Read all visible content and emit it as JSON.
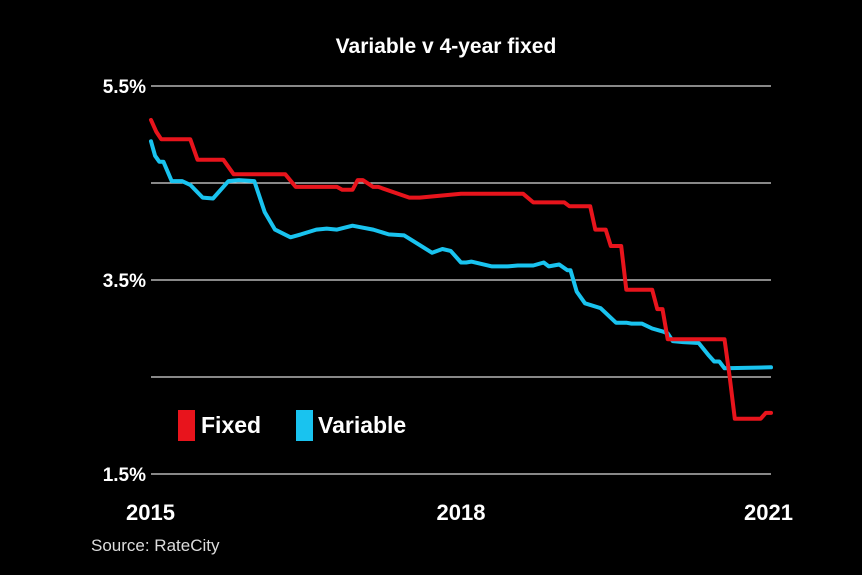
{
  "chart_data": {
    "type": "line",
    "title": "Variable v 4-year fixed",
    "source": "Source: RateCity",
    "yticks": [
      {
        "value": 5.5,
        "label": "5.5%"
      },
      {
        "value": 3.5,
        "label": "3.5%"
      },
      {
        "value": 1.5,
        "label": "1.5%"
      }
    ],
    "ygrid": [
      5.5,
      4.5,
      3.5,
      2.5
    ],
    "ylim": [
      1.5,
      5.5
    ],
    "xticks": [
      {
        "value": 2015,
        "label": "2015"
      },
      {
        "value": 2018,
        "label": "2018"
      },
      {
        "value": 2021,
        "label": "2021"
      }
    ],
    "xlim": [
      2015,
      2021
    ],
    "legend": {
      "placement": "lower-left"
    },
    "series": [
      {
        "name": "Fixed",
        "color": "#e8141c",
        "x": [
          2015.0,
          2015.05,
          2015.1,
          2015.38,
          2015.45,
          2015.7,
          2015.8,
          2016.3,
          2016.4,
          2016.8,
          2016.85,
          2016.95,
          2017.0,
          2017.05,
          2017.15,
          2017.2,
          2017.5,
          2017.6,
          2018.0,
          2018.2,
          2018.35,
          2018.6,
          2018.7,
          2019.0,
          2019.05,
          2019.25,
          2019.3,
          2019.4,
          2019.45,
          2019.55,
          2019.6,
          2019.85,
          2019.9,
          2019.95,
          2020.0,
          2020.05,
          2020.55,
          2020.6,
          2020.65,
          2020.9,
          2020.95,
          2021.0
        ],
        "values": [
          5.15,
          5.03,
          4.95,
          4.95,
          4.74,
          4.74,
          4.59,
          4.59,
          4.46,
          4.46,
          4.43,
          4.43,
          4.53,
          4.53,
          4.46,
          4.46,
          4.35,
          4.35,
          4.39,
          4.39,
          4.39,
          4.39,
          4.3,
          4.3,
          4.26,
          4.26,
          4.02,
          4.02,
          3.85,
          3.85,
          3.4,
          3.4,
          3.2,
          3.2,
          2.89,
          2.89,
          2.89,
          2.5,
          2.07,
          2.07,
          2.13,
          2.13
        ]
      },
      {
        "name": "Variable",
        "color": "#19c3ef",
        "x": [
          2015.0,
          2015.04,
          2015.08,
          2015.12,
          2015.2,
          2015.3,
          2015.38,
          2015.5,
          2015.6,
          2015.75,
          2015.85,
          2016.0,
          2016.1,
          2016.2,
          2016.35,
          2016.45,
          2016.6,
          2016.7,
          2016.8,
          2016.95,
          2017.0,
          2017.15,
          2017.3,
          2017.45,
          2017.6,
          2017.72,
          2017.82,
          2017.9,
          2018.0,
          2018.05,
          2018.1,
          2018.3,
          2018.45,
          2018.55,
          2018.7,
          2018.8,
          2018.85,
          2018.95,
          2019.03,
          2019.06,
          2019.12,
          2019.2,
          2019.35,
          2019.5,
          2019.6,
          2019.65,
          2019.75,
          2019.85,
          2019.95,
          2020.0,
          2020.05,
          2020.15,
          2020.3,
          2020.4,
          2020.45,
          2020.5,
          2020.55,
          2021.0
        ],
        "values": [
          4.93,
          4.78,
          4.72,
          4.72,
          4.52,
          4.52,
          4.48,
          4.35,
          4.34,
          4.52,
          4.53,
          4.52,
          4.2,
          4.02,
          3.94,
          3.97,
          4.02,
          4.03,
          4.02,
          4.06,
          4.05,
          4.02,
          3.97,
          3.96,
          3.86,
          3.78,
          3.82,
          3.8,
          3.68,
          3.68,
          3.69,
          3.64,
          3.64,
          3.65,
          3.65,
          3.68,
          3.64,
          3.66,
          3.6,
          3.6,
          3.38,
          3.26,
          3.21,
          3.06,
          3.06,
          3.05,
          3.05,
          3.0,
          2.97,
          2.95,
          2.87,
          2.86,
          2.85,
          2.72,
          2.66,
          2.66,
          2.59,
          2.6
        ]
      }
    ]
  }
}
